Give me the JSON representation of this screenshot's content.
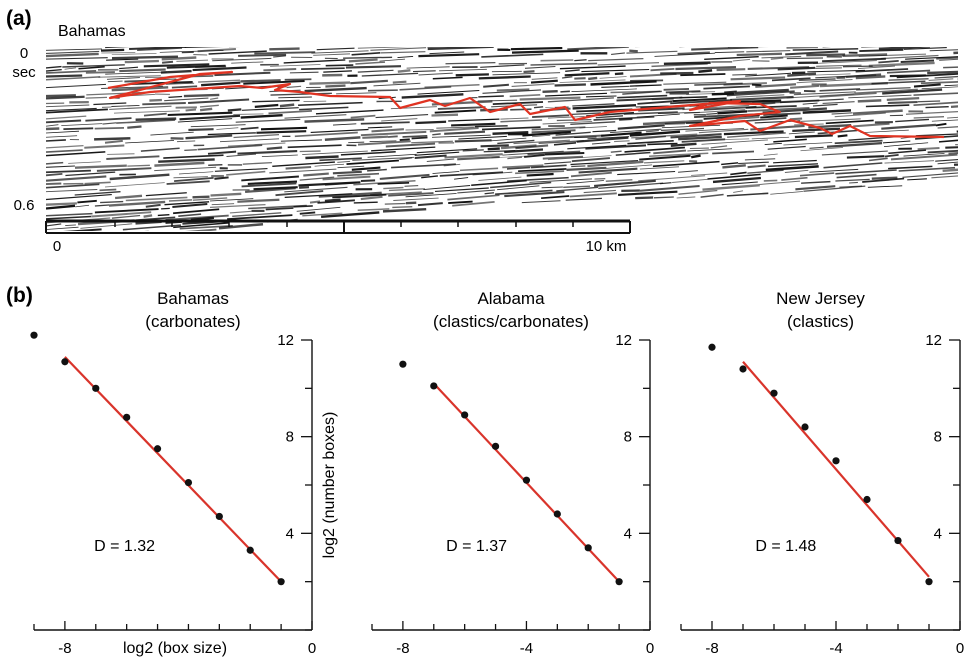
{
  "panel_a": {
    "letter": "(a)",
    "title": "Bahamas",
    "time_labels": [
      "0",
      "sec",
      "0.6"
    ],
    "scale_labels": [
      "0",
      "10 km"
    ],
    "colors": {
      "trace": "#e03322",
      "seismic": "#111111"
    }
  },
  "panel_b": {
    "letter": "(b)",
    "xlabel": "log2 (box size)",
    "ylabel": "log2 (number boxes)"
  },
  "chart_data": [
    {
      "type": "scatter",
      "title": "Bahamas\n(carbonates)",
      "title_lines": [
        "Bahamas",
        "(carbonates)"
      ],
      "xlabel": "log2 (box size)",
      "ylabel": "",
      "xlim": [
        -9,
        0
      ],
      "ylim": [
        0,
        12
      ],
      "xticks": [
        -8,
        0
      ],
      "yticks": [
        4,
        8,
        12
      ],
      "points": {
        "x": [
          -9,
          -8,
          -7,
          -6,
          -5,
          -4,
          -3,
          -2,
          -1
        ],
        "y": [
          12.2,
          11.1,
          10.0,
          8.8,
          7.5,
          6.1,
          4.7,
          3.3,
          2.0
        ]
      },
      "fit": {
        "x": [
          -8,
          -1
        ],
        "y": [
          11.3,
          2.0
        ]
      },
      "annotation": "D = 1.32",
      "colors": {
        "points": "#111111",
        "fit": "#d9342b"
      }
    },
    {
      "type": "scatter",
      "title": "Alabama\n(clastics/carbonates)",
      "title_lines": [
        "Alabama",
        "(clastics/carbonates)"
      ],
      "xlabel": "",
      "ylabel": "log2 (number boxes)",
      "xlim": [
        -9,
        0
      ],
      "ylim": [
        0,
        12
      ],
      "xticks": [
        -8,
        -4,
        0
      ],
      "yticks": [
        4,
        8,
        12
      ],
      "points": {
        "x": [
          -8,
          -7,
          -6,
          -5,
          -4,
          -3,
          -2,
          -1
        ],
        "y": [
          11.0,
          10.1,
          8.9,
          7.6,
          6.2,
          4.8,
          3.4,
          2.0
        ]
      },
      "fit": {
        "x": [
          -7,
          -1
        ],
        "y": [
          10.2,
          2.0
        ]
      },
      "annotation": "D = 1.37",
      "colors": {
        "points": "#111111",
        "fit": "#d9342b"
      }
    },
    {
      "type": "scatter",
      "title": "New Jersey\n(clastics)",
      "title_lines": [
        "New Jersey",
        "(clastics)"
      ],
      "xlabel": "",
      "ylabel": "",
      "xlim": [
        -9,
        0
      ],
      "ylim": [
        0,
        12
      ],
      "xticks": [
        -8,
        -4,
        0
      ],
      "yticks": [
        4,
        8,
        12
      ],
      "points": {
        "x": [
          -8,
          -7,
          -6,
          -5,
          -4,
          -3,
          -2,
          -1
        ],
        "y": [
          11.7,
          10.8,
          9.8,
          8.4,
          7.0,
          5.4,
          3.7,
          2.0
        ]
      },
      "fit": {
        "x": [
          -7,
          -1
        ],
        "y": [
          11.1,
          2.2
        ]
      },
      "annotation": "D = 1.48",
      "colors": {
        "points": "#111111",
        "fit": "#d9342b"
      }
    }
  ]
}
